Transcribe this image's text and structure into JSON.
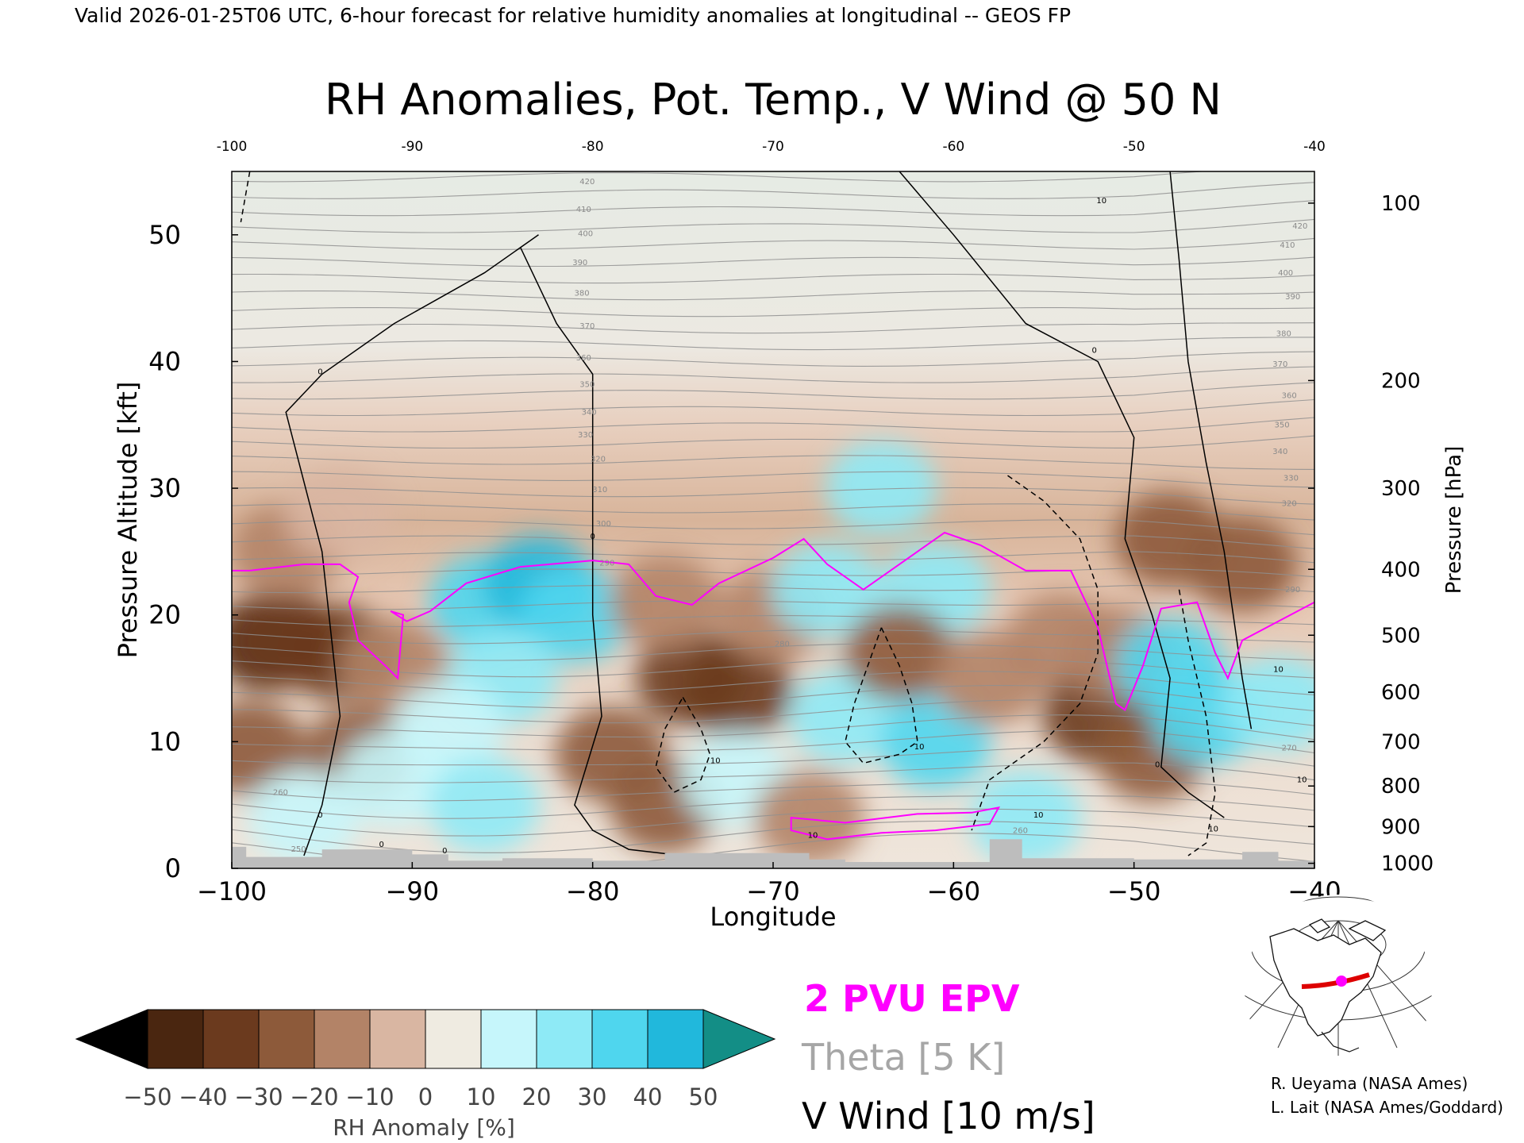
{
  "header": {
    "caption": "Valid 2026-01-25T06 UTC, 6-hour forecast for relative humidity anomalies at longitudinal -- GEOS FP",
    "title": "RH Anomalies, Pot. Temp., V Wind @ 50 N"
  },
  "chart_data": {
    "type": "heatmap",
    "title": "RH Anomalies, Pot. Temp., V Wind @ 50 N",
    "xlabel": "Longitude",
    "ylabel": "Pressure Altitude [kft]",
    "y2label": "Pressure [hPa]",
    "xlim": [
      -100,
      -40
    ],
    "ylim": [
      0,
      55
    ],
    "x_ticks": [
      -100,
      -90,
      -80,
      -70,
      -60,
      -50,
      -40
    ],
    "x_tick_labels": [
      "−100",
      "−90",
      "−80",
      "−70",
      "−60",
      "−50",
      "−40"
    ],
    "top_x_tick_labels": [
      "-100",
      "-90",
      "-80",
      "-70",
      "-60",
      "-50",
      "-40"
    ],
    "y_ticks": [
      0,
      10,
      20,
      30,
      40,
      50
    ],
    "y_tick_labels": [
      "0",
      "10",
      "20",
      "30",
      "40",
      "50"
    ],
    "pressure_ticks": [
      {
        "label": "100",
        "alt": 52.5
      },
      {
        "label": "200",
        "alt": 38.5
      },
      {
        "label": "300",
        "alt": 30.0
      },
      {
        "label": "400",
        "alt": 23.6
      },
      {
        "label": "500",
        "alt": 18.4
      },
      {
        "label": "600",
        "alt": 13.9
      },
      {
        "label": "700",
        "alt": 10.0
      },
      {
        "label": "800",
        "alt": 6.5
      },
      {
        "label": "900",
        "alt": 3.3
      },
      {
        "label": "1000",
        "alt": 0.4
      }
    ],
    "colorbar": {
      "label": "RH Anomaly [%]",
      "levels": [
        "−50",
        "−40",
        "−30",
        "−20",
        "−10",
        "0",
        "10",
        "20",
        "30",
        "40",
        "50"
      ],
      "colors": [
        "#000000",
        "#4a2610",
        "#6b3a1e",
        "#8d5a3a",
        "#b38367",
        "#d9b6a2",
        "#efebe1",
        "#c6f6fb",
        "#8eeaf6",
        "#4fd6ee",
        "#21b8dc",
        "#0c90b6",
        "#138e86"
      ]
    },
    "legend": {
      "epv": "2 PVU EPV",
      "theta": "Theta [5 K]",
      "vwind": "V Wind [10 m/s]",
      "epv_color": "#ff00ff",
      "theta_color": "#a6a6a6",
      "vwind_color": "#000000"
    },
    "rh_blobs": [
      {
        "lon": -98,
        "alt": 17.8,
        "rh": -50
      },
      {
        "lon": -97,
        "alt": 18,
        "rh": -35
      },
      {
        "lon": -94,
        "alt": 17,
        "rh": -32
      },
      {
        "lon": -93,
        "alt": 9,
        "rh": -28
      },
      {
        "lon": -99,
        "alt": 9.5,
        "rh": -30
      },
      {
        "lon": -91,
        "alt": 16,
        "rh": -18
      },
      {
        "lon": -97,
        "alt": 25,
        "rh": -14
      },
      {
        "lon": -94,
        "alt": 28,
        "rh": -8
      },
      {
        "lon": -86,
        "alt": 21,
        "rh": 32
      },
      {
        "lon": -83,
        "alt": 22.5,
        "rh": 45
      },
      {
        "lon": -81,
        "alt": 20,
        "rh": 35
      },
      {
        "lon": -85,
        "alt": 15,
        "rh": 28
      },
      {
        "lon": -88,
        "alt": 11,
        "rh": 18
      },
      {
        "lon": -91,
        "alt": 7,
        "rh": 15
      },
      {
        "lon": -96,
        "alt": 4,
        "rh": 18
      },
      {
        "lon": -86,
        "alt": 5,
        "rh": 20
      },
      {
        "lon": -79,
        "alt": 9,
        "rh": -28
      },
      {
        "lon": -76,
        "alt": 5,
        "rh": -30
      },
      {
        "lon": -74.5,
        "alt": 15,
        "rh": -40
      },
      {
        "lon": -72,
        "alt": 14,
        "rh": -32
      },
      {
        "lon": -76,
        "alt": 21,
        "rh": -12
      },
      {
        "lon": -70,
        "alt": 20,
        "rh": -14
      },
      {
        "lon": -72,
        "alt": 7,
        "rh": 16
      },
      {
        "lon": -67,
        "alt": 22,
        "rh": 20
      },
      {
        "lon": -64,
        "alt": 30,
        "rh": 22
      },
      {
        "lon": -66,
        "alt": 12,
        "rh": 28
      },
      {
        "lon": -61,
        "alt": 22,
        "rh": 22
      },
      {
        "lon": -61,
        "alt": 10,
        "rh": 30
      },
      {
        "lon": -63,
        "alt": 17,
        "rh": -22
      },
      {
        "lon": -58,
        "alt": 15,
        "rh": -18
      },
      {
        "lon": -54,
        "alt": 18,
        "rh": -12
      },
      {
        "lon": -56,
        "alt": 4,
        "rh": 26
      },
      {
        "lon": -52,
        "alt": 12,
        "rh": -35
      },
      {
        "lon": -51,
        "alt": 17,
        "rh": -20
      },
      {
        "lon": -49,
        "alt": 9,
        "rh": -25
      },
      {
        "lon": -48,
        "alt": 26,
        "rh": -30
      },
      {
        "lon": -44,
        "alt": 24,
        "rh": -28
      },
      {
        "lon": -48,
        "alt": 16,
        "rh": 32
      },
      {
        "lon": -46,
        "alt": 12,
        "rh": 38
      },
      {
        "lon": -42,
        "alt": 13,
        "rh": 28
      },
      {
        "lon": -68,
        "alt": 4,
        "rh": -20
      }
    ],
    "theta_labels": [
      {
        "text": "420",
        "lon": -80.3,
        "alt": 54.0
      },
      {
        "text": "410",
        "lon": -80.5,
        "alt": 51.8
      },
      {
        "text": "400",
        "lon": -80.4,
        "alt": 49.9
      },
      {
        "text": "390",
        "lon": -80.7,
        "alt": 47.6
      },
      {
        "text": "380",
        "lon": -80.6,
        "alt": 45.2
      },
      {
        "text": "370",
        "lon": -80.3,
        "alt": 42.6
      },
      {
        "text": "360",
        "lon": -80.5,
        "alt": 40.1
      },
      {
        "text": "350",
        "lon": -80.3,
        "alt": 38.0
      },
      {
        "text": "340",
        "lon": -80.2,
        "alt": 35.8
      },
      {
        "text": "330",
        "lon": -80.4,
        "alt": 34.0
      },
      {
        "text": "320",
        "lon": -79.7,
        "alt": 32.1
      },
      {
        "text": "310",
        "lon": -79.6,
        "alt": 29.7
      },
      {
        "text": "300",
        "lon": -79.4,
        "alt": 27.0
      },
      {
        "text": "290",
        "lon": -79.2,
        "alt": 23.9
      },
      {
        "text": "280",
        "lon": -69.5,
        "alt": 17.5
      },
      {
        "text": "260",
        "lon": -97.3,
        "alt": 5.8
      },
      {
        "text": "260",
        "lon": -56.3,
        "alt": 2.8
      },
      {
        "text": "250",
        "lon": -96.3,
        "alt": 1.3
      },
      {
        "text": "420",
        "lon": -40.8,
        "alt": 50.5
      },
      {
        "text": "410",
        "lon": -41.5,
        "alt": 49.0
      },
      {
        "text": "400",
        "lon": -41.6,
        "alt": 46.8
      },
      {
        "text": "390",
        "lon": -41.2,
        "alt": 44.9
      },
      {
        "text": "380",
        "lon": -41.7,
        "alt": 42.0
      },
      {
        "text": "370",
        "lon": -41.9,
        "alt": 39.6
      },
      {
        "text": "360",
        "lon": -41.4,
        "alt": 37.1
      },
      {
        "text": "350",
        "lon": -41.8,
        "alt": 34.8
      },
      {
        "text": "340",
        "lon": -41.9,
        "alt": 32.7
      },
      {
        "text": "330",
        "lon": -41.3,
        "alt": 30.6
      },
      {
        "text": "320",
        "lon": -41.4,
        "alt": 28.6
      },
      {
        "text": "290",
        "lon": -41.2,
        "alt": 21.8
      },
      {
        "text": "270",
        "lon": -41.4,
        "alt": 9.3
      }
    ],
    "wind_labels": [
      {
        "text": "0",
        "lon": -95.1,
        "alt": 39.0
      },
      {
        "text": "0",
        "lon": -80.0,
        "alt": 26.0
      },
      {
        "text": "0",
        "lon": -52.2,
        "alt": 40.7
      },
      {
        "text": "0",
        "lon": -48.7,
        "alt": 8.0
      },
      {
        "text": "0",
        "lon": -95.1,
        "alt": 4.0
      },
      {
        "text": "0",
        "lon": -91.7,
        "alt": 1.7
      },
      {
        "text": "0",
        "lon": -88.2,
        "alt": 1.2
      },
      {
        "text": "10",
        "lon": -51.8,
        "alt": 52.5
      },
      {
        "text": "10",
        "lon": -61.9,
        "alt": 9.4
      },
      {
        "text": "10",
        "lon": -73.2,
        "alt": 8.3
      },
      {
        "text": "10",
        "lon": -67.8,
        "alt": 2.4
      },
      {
        "text": "10",
        "lon": -55.3,
        "alt": 4.0
      },
      {
        "text": "10",
        "lon": -45.6,
        "alt": 2.9
      },
      {
        "text": "10",
        "lon": -42.0,
        "alt": 15.5
      },
      {
        "text": "10",
        "lon": -40.7,
        "alt": 6.8
      }
    ]
  },
  "map_inset": {
    "description_label": "",
    "marker_color": "#ff00ff",
    "track_color": "#dd0000"
  },
  "credits": {
    "line1": "R. Ueyama (NASA Ames)",
    "line2": "L. Lait (NASA Ames/Goddard)"
  }
}
